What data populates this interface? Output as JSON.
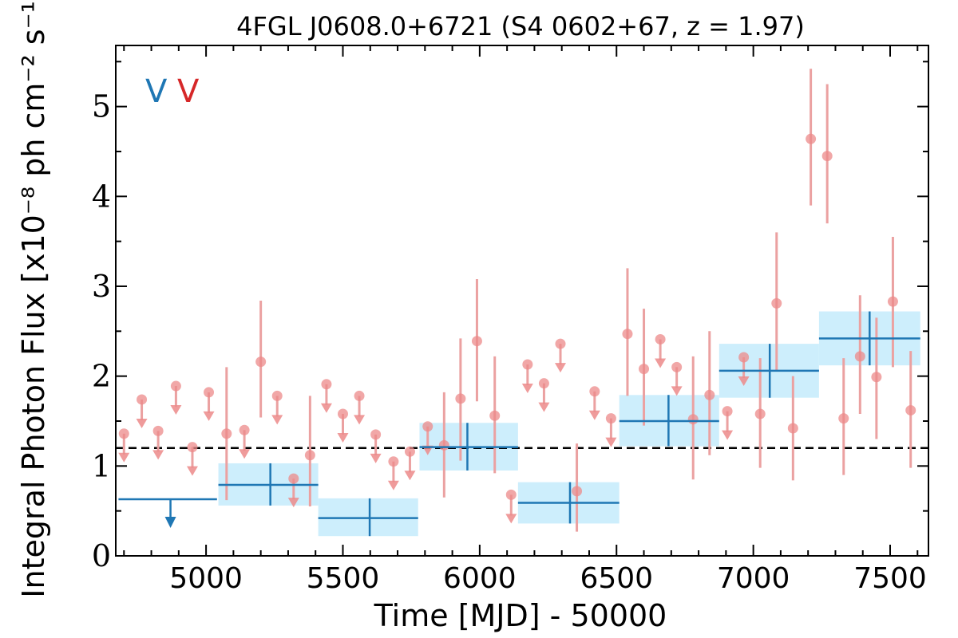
{
  "chart_data": {
    "type": "scatter",
    "title": "4FGL J0608.0+6721 (S4 0602+67, z = 1.97)",
    "xlabel": "Time [MJD] - 50000",
    "ylabel": "Integral Photon Flux [x10⁻⁸ ph cm⁻² s⁻¹]",
    "xlim": [
      4670,
      7640
    ],
    "ylim": [
      0,
      5.68
    ],
    "x_ticks": [
      5000,
      5500,
      6000,
      6500,
      7000,
      7500
    ],
    "y_ticks": [
      0,
      1,
      2,
      3,
      4,
      5
    ],
    "grid": false,
    "mean_flux": 1.2,
    "legend": {
      "placement": "top-left",
      "items": [
        {
          "label": "V",
          "color": "#1f77b4"
        },
        {
          "label": "V",
          "color": "#d62728"
        }
      ]
    },
    "colors": {
      "yearly": "#1f77b4",
      "yearly_band": "#cdeefc",
      "monthly": "#ec8a8a",
      "monthly_err": "#eba1a1",
      "mean_line": "#000000"
    },
    "yearly_bins": [
      {
        "x_start": 4680,
        "x_end": 5040,
        "y": 0.63,
        "upper_limit": true
      },
      {
        "x_start": 5045,
        "x_end": 5410,
        "y": 0.79,
        "y_low": 0.56,
        "y_high": 1.03,
        "x_center": 5235
      },
      {
        "x_start": 5410,
        "x_end": 5775,
        "y": 0.42,
        "y_low": 0.22,
        "y_high": 0.64,
        "x_center": 5598
      },
      {
        "x_start": 5780,
        "x_end": 6140,
        "y": 1.21,
        "y_low": 0.95,
        "y_high": 1.48,
        "x_center": 5955
      },
      {
        "x_start": 6140,
        "x_end": 6510,
        "y": 0.59,
        "y_low": 0.36,
        "y_high": 0.82,
        "x_center": 6330
      },
      {
        "x_start": 6510,
        "x_end": 6875,
        "y": 1.5,
        "y_low": 1.22,
        "y_high": 1.79,
        "x_center": 6690
      },
      {
        "x_start": 6875,
        "x_end": 7240,
        "y": 2.06,
        "y_low": 1.76,
        "y_high": 2.36,
        "x_center": 7060
      },
      {
        "x_start": 7240,
        "x_end": 7610,
        "y": 2.42,
        "y_low": 2.12,
        "y_high": 2.72,
        "x_center": 7425
      }
    ],
    "monthly_points": [
      {
        "x": 4700,
        "y": 1.36,
        "upper_limit": true
      },
      {
        "x": 4765,
        "y": 1.74,
        "upper_limit": true
      },
      {
        "x": 4825,
        "y": 1.39,
        "upper_limit": true
      },
      {
        "x": 4890,
        "y": 1.89,
        "upper_limit": true
      },
      {
        "x": 4950,
        "y": 1.21,
        "upper_limit": true
      },
      {
        "x": 5010,
        "y": 1.82,
        "upper_limit": true
      },
      {
        "x": 5075,
        "y": 1.36,
        "y_low": 0.62,
        "y_high": 2.1
      },
      {
        "x": 5140,
        "y": 1.4,
        "upper_limit": true
      },
      {
        "x": 5200,
        "y": 2.16,
        "y_low": 1.54,
        "y_high": 2.84
      },
      {
        "x": 5260,
        "y": 1.78,
        "upper_limit": true
      },
      {
        "x": 5320,
        "y": 0.86,
        "upper_limit": true
      },
      {
        "x": 5380,
        "y": 1.12,
        "y_low": 0.55,
        "y_high": 1.78
      },
      {
        "x": 5440,
        "y": 1.91,
        "upper_limit": true
      },
      {
        "x": 5500,
        "y": 1.58,
        "upper_limit": true
      },
      {
        "x": 5560,
        "y": 1.78,
        "upper_limit": true
      },
      {
        "x": 5620,
        "y": 1.35,
        "upper_limit": true
      },
      {
        "x": 5685,
        "y": 1.05,
        "upper_limit": true
      },
      {
        "x": 5745,
        "y": 1.16,
        "upper_limit": true
      },
      {
        "x": 5810,
        "y": 1.44,
        "upper_limit": true
      },
      {
        "x": 5870,
        "y": 1.23,
        "y_low": 0.65,
        "y_high": 1.82
      },
      {
        "x": 5930,
        "y": 1.75,
        "y_low": 1.06,
        "y_high": 2.42
      },
      {
        "x": 5990,
        "y": 2.39,
        "y_low": 1.72,
        "y_high": 3.08
      },
      {
        "x": 6055,
        "y": 1.56,
        "y_low": 0.92,
        "y_high": 2.22
      },
      {
        "x": 6115,
        "y": 0.68,
        "upper_limit": true
      },
      {
        "x": 6175,
        "y": 2.13,
        "upper_limit": true
      },
      {
        "x": 6235,
        "y": 1.92,
        "upper_limit": true
      },
      {
        "x": 6295,
        "y": 2.36,
        "upper_limit": true
      },
      {
        "x": 6355,
        "y": 0.72,
        "y_low": 0.27,
        "y_high": 1.25
      },
      {
        "x": 6420,
        "y": 1.83,
        "upper_limit": true
      },
      {
        "x": 6480,
        "y": 1.53,
        "upper_limit": true
      },
      {
        "x": 6540,
        "y": 2.47,
        "y_low": 1.78,
        "y_high": 3.2
      },
      {
        "x": 6600,
        "y": 2.08,
        "y_low": 1.45,
        "y_high": 2.75
      },
      {
        "x": 6660,
        "y": 2.41,
        "upper_limit": true
      },
      {
        "x": 6720,
        "y": 2.1,
        "upper_limit": true
      },
      {
        "x": 6780,
        "y": 1.52,
        "y_low": 0.85,
        "y_high": 2.22
      },
      {
        "x": 6840,
        "y": 1.79,
        "y_low": 1.12,
        "y_high": 2.5
      },
      {
        "x": 6905,
        "y": 1.61,
        "upper_limit": true
      },
      {
        "x": 6965,
        "y": 2.21,
        "upper_limit": true
      },
      {
        "x": 7025,
        "y": 1.58,
        "y_low": 0.98,
        "y_high": 2.2
      },
      {
        "x": 7085,
        "y": 2.81,
        "y_low": 2.05,
        "y_high": 3.6
      },
      {
        "x": 7145,
        "y": 1.42,
        "y_low": 0.84,
        "y_high": 2.0
      },
      {
        "x": 7210,
        "y": 4.64,
        "y_low": 3.9,
        "y_high": 5.42
      },
      {
        "x": 7270,
        "y": 4.45,
        "y_low": 3.7,
        "y_high": 5.25
      },
      {
        "x": 7330,
        "y": 1.53,
        "y_low": 0.9,
        "y_high": 2.2
      },
      {
        "x": 7390,
        "y": 2.22,
        "y_low": 1.58,
        "y_high": 2.9
      },
      {
        "x": 7450,
        "y": 1.99,
        "y_low": 1.3,
        "y_high": 2.65
      },
      {
        "x": 7510,
        "y": 2.83,
        "y_low": 2.1,
        "y_high": 3.55
      },
      {
        "x": 7575,
        "y": 1.62,
        "y_low": 0.98,
        "y_high": 2.28
      }
    ]
  }
}
